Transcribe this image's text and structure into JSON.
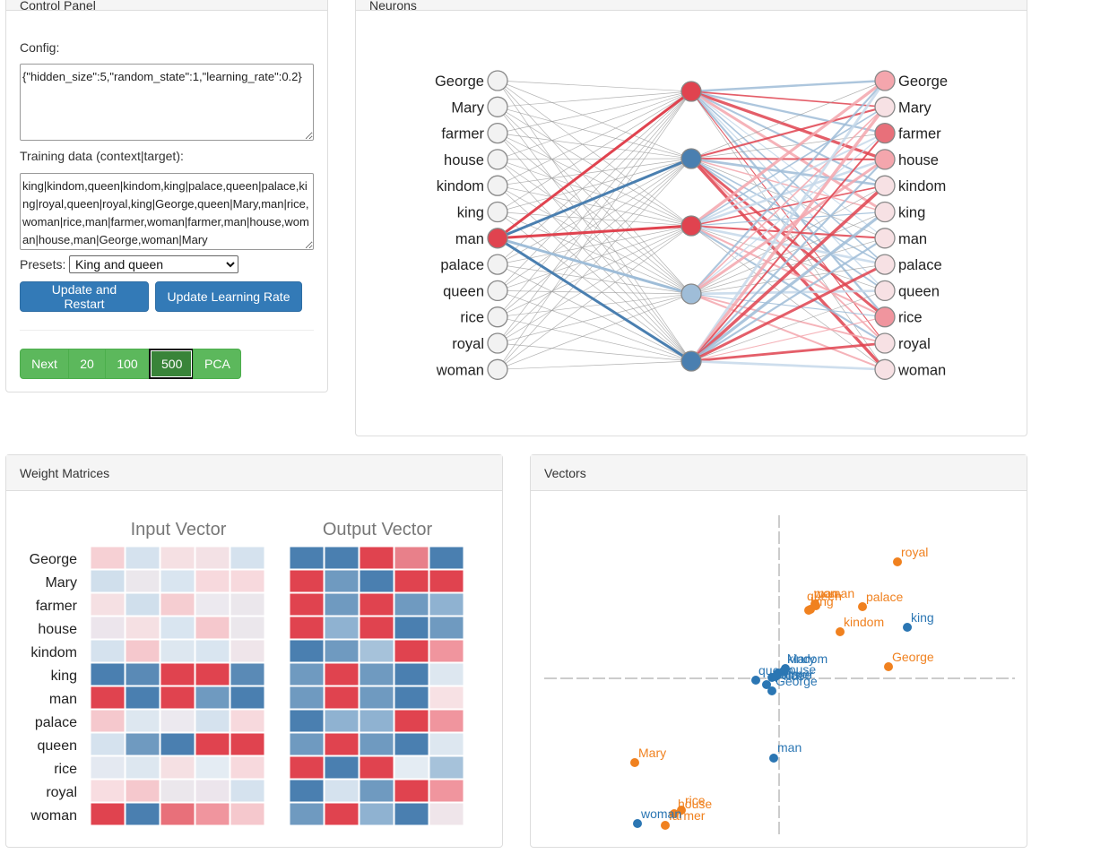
{
  "control_panel": {
    "title": "Control Panel",
    "config_label": "Config:",
    "config_value": "{\"hidden_size\":5,\"random_state\":1,\"learning_rate\":0.2}",
    "training_label": "Training data (context|target):",
    "training_value": "king|kindom,queen|kindom,king|palace,queen|palace,king|royal,queen|royal,king|George,queen|Mary,man|rice,woman|rice,man|farmer,woman|farmer,man|house,woman|house,man|George,woman|Mary",
    "presets_label": "Presets:",
    "presets_selected": "King and queen",
    "update_restart_label": "Update and Restart",
    "update_lr_label": "Update Learning Rate",
    "step_buttons": [
      "Next",
      "20",
      "100",
      "500",
      "PCA"
    ],
    "active_step": "500"
  },
  "neurons_panel": {
    "title": "Neurons",
    "input_words": [
      "George",
      "Mary",
      "farmer",
      "house",
      "kindom",
      "king",
      "man",
      "palace",
      "queen",
      "rice",
      "royal",
      "woman"
    ],
    "output_words": [
      "George",
      "Mary",
      "farmer",
      "house",
      "kindom",
      "king",
      "man",
      "palace",
      "queen",
      "rice",
      "royal",
      "woman"
    ],
    "active_input": "man",
    "colors": {
      "active_red": "#e0434f",
      "light_red": "#f4a6ad",
      "pale_red": "#f7e1e4",
      "blue": "#4a7fb0",
      "light_blue": "#9fbdd8",
      "neutral": "#f2f2f2"
    }
  },
  "weights_panel": {
    "title": "Weight Matrices",
    "input_title": "Input Vector",
    "output_title": "Output Vector",
    "row_labels": [
      "George",
      "Mary",
      "farmer",
      "house",
      "kindom",
      "king",
      "man",
      "palace",
      "queen",
      "rice",
      "royal",
      "woman"
    ]
  },
  "vectors_panel": {
    "title": "Vectors",
    "legend_colors": {
      "input": "#2b76b3",
      "output": "#f0811f"
    }
  }
}
